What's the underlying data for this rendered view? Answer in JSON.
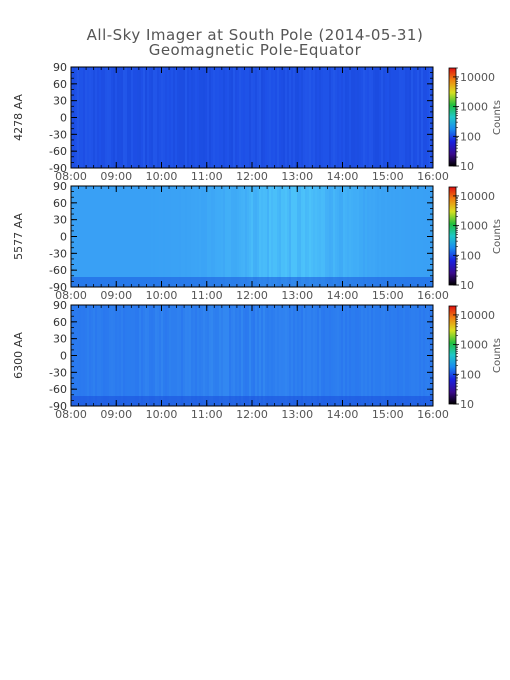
{
  "title": "All-Sky Imager at South Pole (2014-05-31)",
  "subtitle": "Geomagnetic Pole-Equator",
  "chart_data": [
    {
      "type": "heatmap",
      "ylabel": "4278 AA",
      "x_ticks": [
        "08:00",
        "09:00",
        "10:00",
        "11:00",
        "12:00",
        "13:00",
        "14:00",
        "15:00",
        "16:00"
      ],
      "y_ticks": [
        90,
        60,
        30,
        0,
        -30,
        -60,
        -90
      ],
      "ylim": [
        -90,
        90
      ],
      "colorbar": {
        "label": "Counts",
        "ticks": [
          "10",
          "100",
          "1000",
          "10000"
        ],
        "scale": "log",
        "range": [
          10,
          20000
        ]
      },
      "dominant_colors": [
        "#1e50e6",
        "#1846d8",
        "#2a62ee"
      ]
    },
    {
      "type": "heatmap",
      "ylabel": "5577 AA",
      "x_ticks": [
        "08:00",
        "09:00",
        "10:00",
        "11:00",
        "12:00",
        "13:00",
        "14:00",
        "15:00",
        "16:00"
      ],
      "y_ticks": [
        90,
        60,
        30,
        0,
        -30,
        -60,
        -90
      ],
      "ylim": [
        -90,
        90
      ],
      "colorbar": {
        "label": "Counts",
        "ticks": [
          "10",
          "100",
          "1000",
          "10000"
        ],
        "scale": "log",
        "range": [
          10,
          20000
        ]
      },
      "dominant_colors": [
        "#3aa0f5",
        "#50c8fa",
        "#1a5ae0"
      ]
    },
    {
      "type": "heatmap",
      "ylabel": "6300 AA",
      "x_ticks": [
        "08:00",
        "09:00",
        "10:00",
        "11:00",
        "12:00",
        "13:00",
        "14:00",
        "15:00",
        "16:00"
      ],
      "y_ticks": [
        90,
        60,
        30,
        0,
        -30,
        -60,
        -90
      ],
      "ylim": [
        -90,
        90
      ],
      "colorbar": {
        "label": "Counts",
        "ticks": [
          "10",
          "100",
          "1000",
          "10000"
        ],
        "scale": "log",
        "range": [
          10,
          20000
        ]
      },
      "dominant_colors": [
        "#2a78ee",
        "#3a95f2",
        "#1a4fdc"
      ]
    }
  ]
}
